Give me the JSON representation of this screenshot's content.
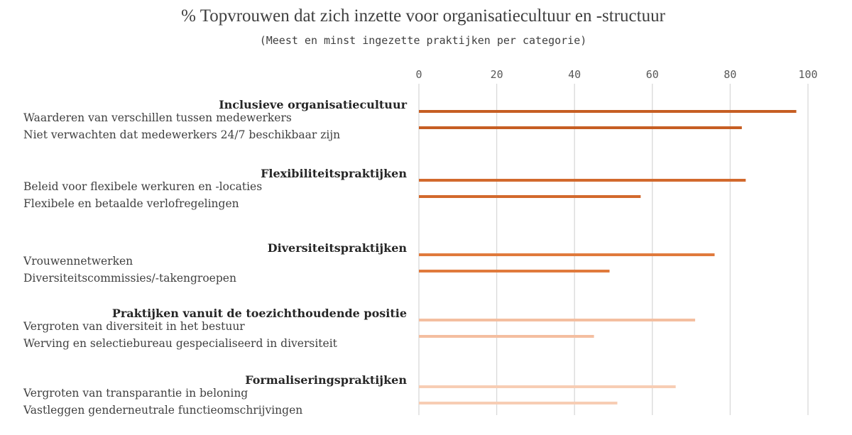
{
  "chart_data": {
    "type": "bar",
    "orientation": "horizontal",
    "title": "% Topvrouwen dat zich inzette voor organisatiecultuur en -structuur",
    "subtitle": "(Meest en minst ingezette praktijken per categorie)",
    "xlim": [
      0,
      100
    ],
    "xticks": [
      0,
      20,
      40,
      60,
      80,
      100
    ],
    "tick_labels": [
      "0",
      "20",
      "40",
      "60",
      "80",
      "100"
    ],
    "grid": true,
    "legend": "none",
    "groups": [
      {
        "name": "Inclusieve organisatiecultuur",
        "color": "#c65e23",
        "bars": [
          {
            "label": "Waarderen van verschillen tussen medewerkers",
            "value": 97
          },
          {
            "label": "Niet verwachten dat medewerkers 24/7 beschikbaar zijn",
            "value": 83
          }
        ]
      },
      {
        "name": "Flexibiliteitspraktijken",
        "color": "#d2692d",
        "bars": [
          {
            "label": "Beleid voor flexibele werkuren en -locaties",
            "value": 84
          },
          {
            "label": "Flexibele en betaalde verlofregelingen",
            "value": 57
          }
        ]
      },
      {
        "name": "Diversiteitspraktijken",
        "color": "#e07a3c",
        "bars": [
          {
            "label": "Vrouwennetwerken",
            "value": 76
          },
          {
            "label": "Diversiteitscommissies/-takengroepen",
            "value": 49
          }
        ]
      },
      {
        "name": "Praktijken vanuit de toezichthoudende positie",
        "color": "#f4bea0",
        "bars": [
          {
            "label": "Vergroten van diversiteit in het bestuur",
            "value": 71
          },
          {
            "label": "Werving en selectiebureau gespecialiseerd in diversiteit",
            "value": 45
          }
        ]
      },
      {
        "name": "Formaliseringspraktijken",
        "color": "#f7cdb4",
        "bars": [
          {
            "label": "Vergroten van transparantie in beloning",
            "value": 66
          },
          {
            "label": "Vastleggen genderneutrale functieomschrijvingen",
            "value": 51
          }
        ]
      }
    ]
  }
}
